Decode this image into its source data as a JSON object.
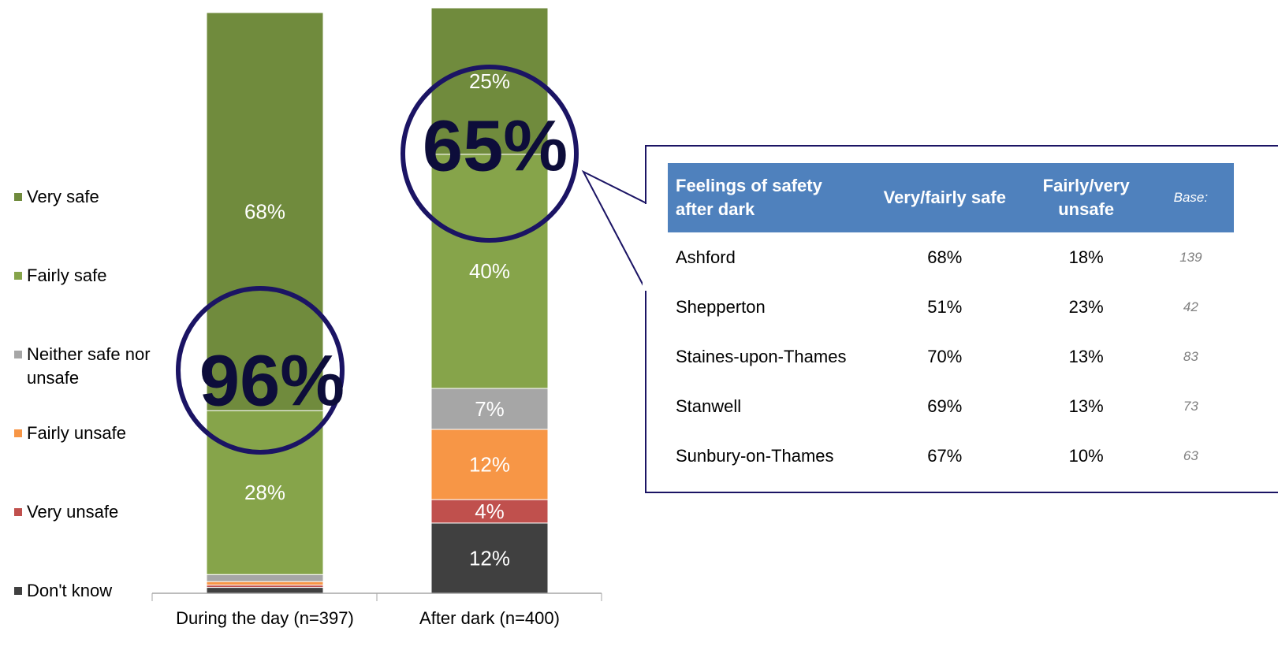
{
  "chart_data": {
    "type": "stacked-bar",
    "categories": [
      "During the day (n=397)",
      "After dark (n=400)"
    ],
    "series": [
      {
        "name": "Very safe",
        "color": "#708b3d",
        "values": [
          68,
          25
        ],
        "value_labels": [
          "68%",
          "25%"
        ]
      },
      {
        "name": "Fairly safe",
        "color": "#86a44a",
        "values": [
          28,
          40
        ],
        "value_labels": [
          "28%",
          "40%"
        ]
      },
      {
        "name": "Neither safe nor unsafe",
        "color": "#a6a6a6",
        "values": [
          1.2,
          7
        ],
        "value_labels": [
          null,
          "7%"
        ]
      },
      {
        "name": "Fairly unsafe",
        "color": "#f79646",
        "values": [
          0.6,
          12
        ],
        "value_labels": [
          null,
          "12%"
        ]
      },
      {
        "name": "Very unsafe",
        "color": "#c0504d",
        "values": [
          0.4,
          4
        ],
        "value_labels": [
          null,
          "4%"
        ]
      },
      {
        "name": "Don't know",
        "color": "#404040",
        "values": [
          1,
          12
        ],
        "value_labels": [
          null,
          "12%"
        ]
      }
    ],
    "ylim": [
      0,
      100
    ],
    "annotations": [
      "96%",
      "65%"
    ]
  },
  "table": {
    "header": [
      "Feelings of safety after dark",
      "Very/fairly safe",
      "Fairly/very unsafe",
      "Base:"
    ],
    "rows": [
      [
        "Ashford",
        "68%",
        "18%",
        "139"
      ],
      [
        "Shepperton",
        "51%",
        "23%",
        "42"
      ],
      [
        "Staines-upon-Thames",
        "70%",
        "13%",
        "83"
      ],
      [
        "Stanwell",
        "69%",
        "13%",
        "73"
      ],
      [
        "Sunbury-on-Thames",
        "67%",
        "10%",
        "63"
      ]
    ]
  }
}
